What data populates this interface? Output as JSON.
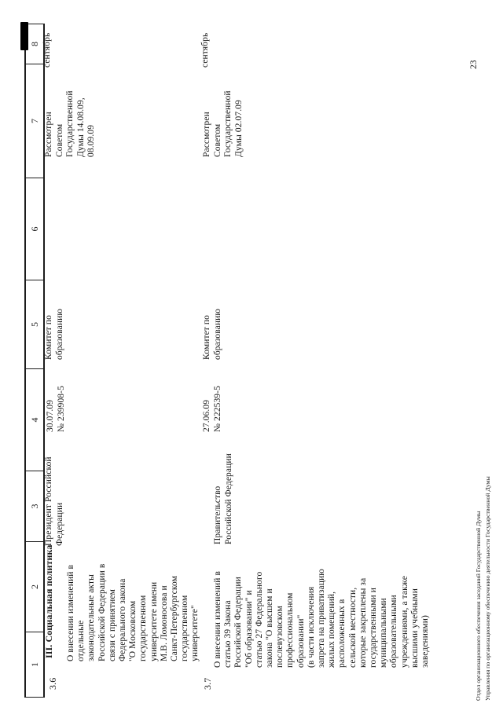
{
  "page": {
    "number": "23",
    "footer_lines": [
      "Отдел организационного обеспечения заседаний Государственной Думы",
      "Управления по организационному обеспечению деятельности Государственной Думы"
    ],
    "colors": {
      "paper": "#ffffff",
      "ink": "#1a1a1a"
    }
  },
  "table": {
    "column_numbers": [
      "1",
      "2",
      "3",
      "4",
      "5",
      "6",
      "7",
      "8"
    ],
    "section_title": "III. Социальная политика",
    "rows": [
      {
        "num": "3.6",
        "bill_title": "О внесении изменений в\nотдельные\nзаконодательные акты\nРоссийской Федерации в\nсвязи с принятием\nФедерального закона\n\"О Московском\nгосударственном\nуниверситете имени\nМ.В. Ломоносова и\nСанкт-Петербургском\nгосударственном\nуниверситете\"",
        "initiator": "Президент Российской\nФедерации",
        "date_number": "30.07.09\n№ 239908-5",
        "committee": "Комитет по\nобразованию",
        "col6": "",
        "status": "Рассмотрен\nСоветом\nГосударственной\nДумы 14.08.09,\n08.09.09",
        "month": "сентябрь"
      },
      {
        "num": "3.7",
        "bill_title": "О внесении изменений в\nстатью 39 Закона\nРоссийской Федерации\n\"Об образовании\" и\nстатью 27 Федерального\nзакона \"О высшем и\nпослевузовском\nпрофессиональном\nобразовании\"\n(в части исключения\nзапрета на приватизацию\nжилых помещений,\nрасположенных в\nсельской местности,\nкоторые закреплены за\nгосударственными и\nмуниципальными\nобразовательными\nучреждениями, а также\nвысшими учебными\nзаведениями)",
        "initiator": "Правительство\nРоссийской Федерации",
        "date_number": "27.06.09\n№ 222539-5",
        "committee": "Комитет по\nобразованию",
        "col6": "",
        "status": "Рассмотрен\nСоветом\nГосударственной\nДумы 02.07.09",
        "month": "сентябрь"
      }
    ]
  }
}
